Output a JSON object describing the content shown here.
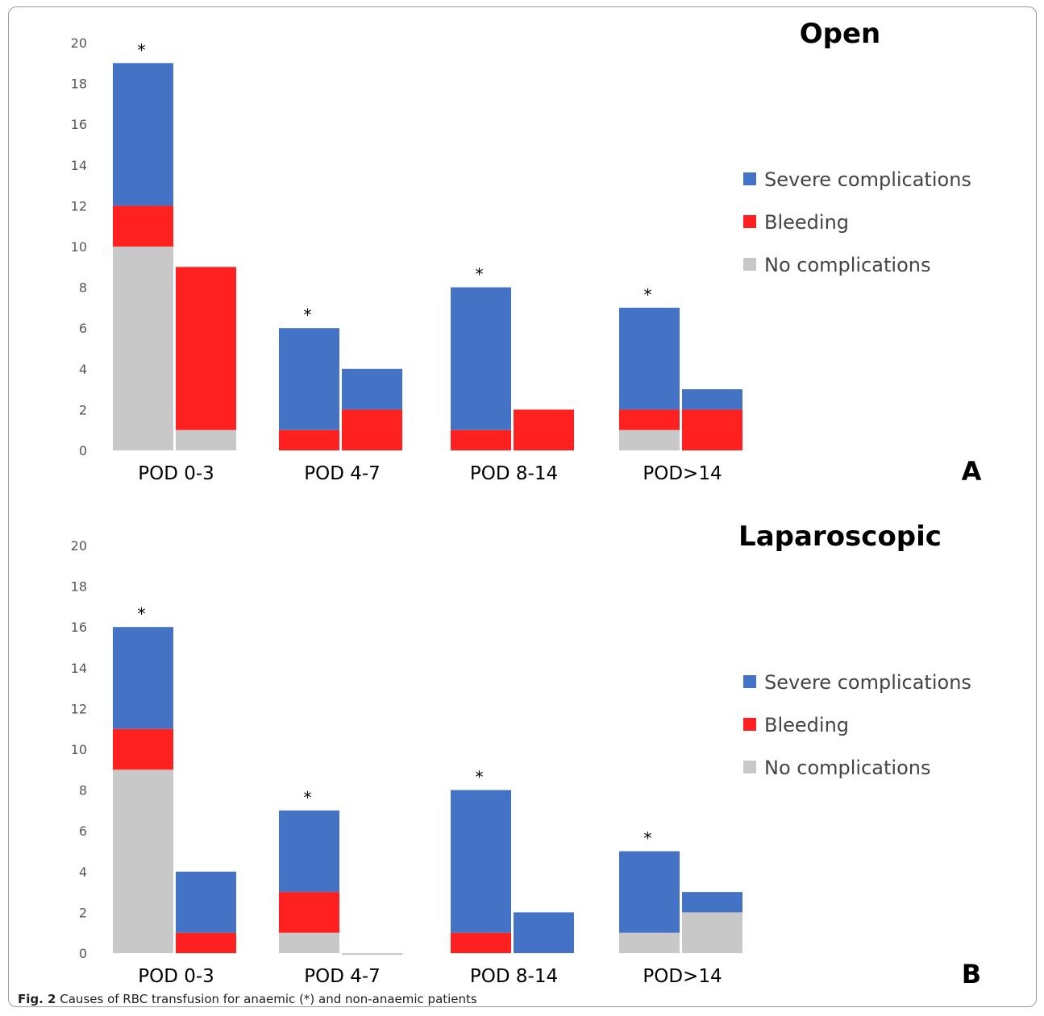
{
  "figure": {
    "caption_label": "Fig. 2",
    "caption_text": "Causes of RBC transfusion for anaemic (*) and non-anaemic patients"
  },
  "colors": {
    "severe": "#4472c4",
    "bleeding": "#ff2020",
    "none": "#c8c8c8"
  },
  "chart_data": [
    {
      "type": "bar",
      "stacked": true,
      "title": "Open",
      "panel_label": "A",
      "categories": [
        "POD 0-3",
        "POD 4-7",
        "POD 8-14",
        "POD>14"
      ],
      "bars_per_category": [
        "anaemic (*)",
        "non-anaemic"
      ],
      "ylim": [
        0,
        20
      ],
      "yticks": [
        0,
        2,
        4,
        6,
        8,
        10,
        12,
        14,
        16,
        18,
        20
      ],
      "legend": [
        "Severe complications",
        "Bleeding",
        "No complications"
      ],
      "legend_position": "right",
      "series": [
        {
          "name": "No complications",
          "color": "#c8c8c8",
          "values": [
            [
              10,
              1
            ],
            [
              0,
              0
            ],
            [
              0,
              0
            ],
            [
              1,
              0
            ]
          ]
        },
        {
          "name": "Bleeding",
          "color": "#ff2020",
          "values": [
            [
              2,
              8
            ],
            [
              1,
              2
            ],
            [
              1,
              2
            ],
            [
              1,
              2
            ]
          ]
        },
        {
          "name": "Severe complications",
          "color": "#4472c4",
          "values": [
            [
              7,
              0
            ],
            [
              5,
              2
            ],
            [
              7,
              0
            ],
            [
              5,
              1
            ]
          ]
        }
      ],
      "annotations": [
        "*",
        "*",
        "*",
        "*"
      ]
    },
    {
      "type": "bar",
      "stacked": true,
      "title": "Laparoscopic",
      "panel_label": "B",
      "categories": [
        "POD 0-3",
        "POD 4-7",
        "POD 8-14",
        "POD>14"
      ],
      "bars_per_category": [
        "anaemic (*)",
        "non-anaemic"
      ],
      "ylim": [
        0,
        20
      ],
      "yticks": [
        0,
        2,
        4,
        6,
        8,
        10,
        12,
        14,
        16,
        18,
        20
      ],
      "legend": [
        "Severe complications",
        "Bleeding",
        "No complications"
      ],
      "legend_position": "right",
      "series": [
        {
          "name": "No complications",
          "color": "#c8c8c8",
          "values": [
            [
              9,
              0
            ],
            [
              1,
              0
            ],
            [
              0,
              0
            ],
            [
              1,
              2
            ]
          ]
        },
        {
          "name": "Bleeding",
          "color": "#ff2020",
          "values": [
            [
              2,
              1
            ],
            [
              2,
              0
            ],
            [
              1,
              0
            ],
            [
              0,
              0
            ]
          ]
        },
        {
          "name": "Severe complications",
          "color": "#4472c4",
          "values": [
            [
              5,
              3
            ],
            [
              4,
              0
            ],
            [
              7,
              2
            ],
            [
              4,
              1
            ]
          ]
        }
      ],
      "annotations": [
        "*",
        "*",
        "*",
        "*"
      ]
    }
  ]
}
